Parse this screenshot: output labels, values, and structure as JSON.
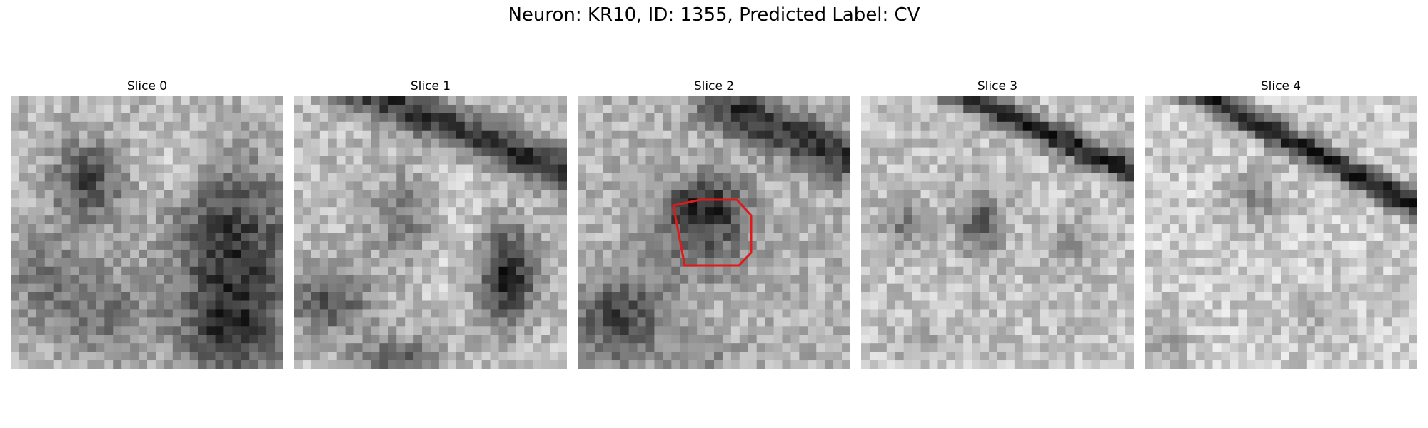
{
  "figure": {
    "title": "Neuron: KR10, ID: 1355, Predicted Label: CV"
  },
  "panels": [
    {
      "title": "Slice 0"
    },
    {
      "title": "Slice 1"
    },
    {
      "title": "Slice 2",
      "outline_color": "#e01a1a"
    },
    {
      "title": "Slice 3"
    },
    {
      "title": "Slice 4"
    }
  ]
}
